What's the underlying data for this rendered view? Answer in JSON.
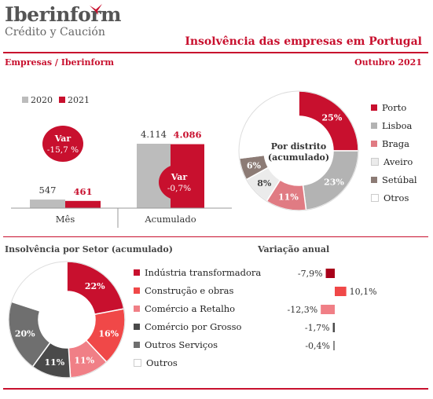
{
  "header": {
    "logo_main": "Iberinform",
    "logo_sub": "Crédito y Caución",
    "title": "Insolvência das empresas em Portugal",
    "source": "Empresas / Iberinform",
    "date": "Outubro 2021"
  },
  "colors": {
    "brand_red": "#c8102e",
    "y2020": "#bcbcbc",
    "y2021": "#c8102e"
  },
  "chart_data": [
    {
      "type": "bar",
      "categories": [
        "Mês",
        "Acumulado"
      ],
      "series": [
        {
          "name": "2020",
          "values": [
            547,
            4114
          ],
          "labels": [
            "547",
            "4.114"
          ]
        },
        {
          "name": "2021",
          "values": [
            461,
            4086
          ],
          "labels": [
            "461",
            "4.086"
          ]
        }
      ],
      "annotations": [
        {
          "category": "Mês",
          "title": "Var",
          "value": "-15,7 %"
        },
        {
          "category": "Acumulado",
          "title": "Var",
          "value": "-0,7%"
        }
      ]
    },
    {
      "type": "pie",
      "title": "Por distrito (acumulado)",
      "center_label": [
        "Por distrito",
        "(acumulado)"
      ],
      "slices": [
        {
          "label": "Porto",
          "value": 25,
          "text": "25%",
          "color": "#c8102e"
        },
        {
          "label": "Lisboa",
          "value": 23,
          "text": "23%",
          "color": "#b3b3b3"
        },
        {
          "label": "Braga",
          "value": 11,
          "text": "11%",
          "color": "#e07b83"
        },
        {
          "label": "Aveiro",
          "value": 8,
          "text": "8%",
          "color": "#ebebeb"
        },
        {
          "label": "Setúbal",
          "value": 6,
          "text": "6%",
          "color": "#8c7b75"
        },
        {
          "label": "Otros",
          "value": 27,
          "text": "",
          "color": "#ffffff"
        }
      ]
    },
    {
      "type": "pie",
      "title": "Insolvência por Setor (acumulado)",
      "slices": [
        {
          "label": "Indústria transformadora",
          "value": 22,
          "text": "22%",
          "color": "#c8102e"
        },
        {
          "label": "Construção e obras",
          "value": 16,
          "text": "16%",
          "color": "#f04848"
        },
        {
          "label": "Comércio a Retalho",
          "value": 11,
          "text": "11%",
          "color": "#f07f86"
        },
        {
          "label": "Comércio por Grosso",
          "value": 11,
          "text": "11%",
          "color": "#4a4a4a"
        },
        {
          "label": "Outros Serviços",
          "value": 20,
          "text": "20%",
          "color": "#6f6f6f"
        },
        {
          "label": "Outros",
          "value": 20,
          "text": "",
          "color": "#ffffff"
        }
      ]
    },
    {
      "type": "bar",
      "title": "Variação anual",
      "orientation": "horizontal",
      "categories": [
        "Indústria transformadora",
        "Construção e obras",
        "Comércio a Retalho",
        "Comércio por Grosso",
        "Outros Serviços"
      ],
      "values": [
        -7.9,
        10.1,
        -12.3,
        -1.7,
        -0.4
      ],
      "labels": [
        "-7,9%",
        "10,1%",
        "-12,3%",
        "-1,7%",
        "-0,4%"
      ],
      "colors": [
        "#a8001a",
        "#f04848",
        "#f07f86",
        "#4a4a4a",
        "#8a8a8a"
      ]
    }
  ]
}
